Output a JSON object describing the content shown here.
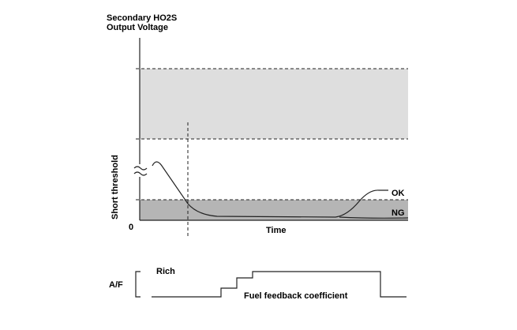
{
  "axis_label": {
    "line1": "Secondary HO2S",
    "line2": "Output Voltage"
  },
  "threshold_label": "Short threshold",
  "origin_label": "0",
  "x_label": "Time",
  "curve_labels": {
    "ok": "OK",
    "ng": "NG"
  },
  "af_chart": {
    "axis_label": "A/F",
    "rich_label": "Rich",
    "coefficient_label": "Fuel feedback coefficient"
  }
}
